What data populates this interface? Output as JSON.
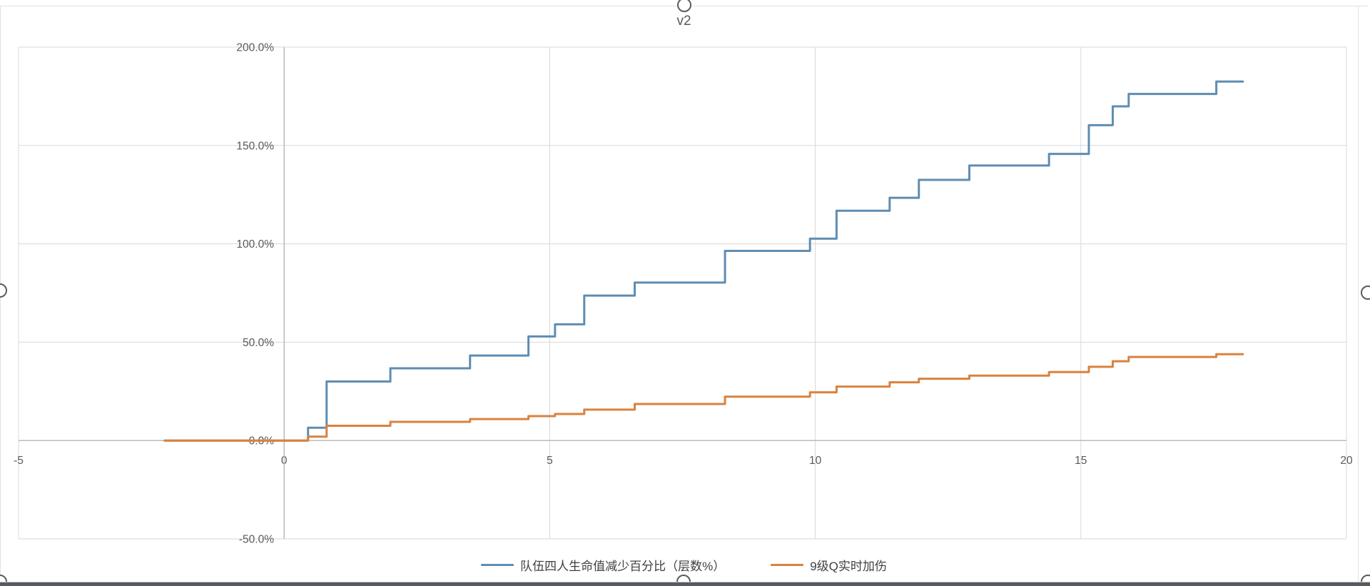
{
  "chart_data": {
    "type": "line",
    "subtype": "step",
    "title": "v2",
    "grid": true,
    "legend_position": "bottom",
    "x_axis": {
      "min": -5,
      "max": 20,
      "ticks": [
        -5,
        0,
        5,
        10,
        15,
        20
      ]
    },
    "y_axis": {
      "min": -50,
      "max": 200,
      "ticks": [
        -50,
        0,
        50,
        100,
        150,
        200
      ],
      "tick_format": "percent_1dp"
    },
    "x_end": 18.05,
    "series": [
      {
        "name": "队伍四人生命值减少百分比（层数%）",
        "color": "#5E8DB3",
        "steps": [
          [
            -2.25,
            0
          ],
          [
            0.45,
            6.5
          ],
          [
            0.8,
            30
          ],
          [
            2.0,
            36.7
          ],
          [
            3.5,
            43.2
          ],
          [
            4.6,
            52.9
          ],
          [
            5.1,
            59.1
          ],
          [
            5.65,
            73.7
          ],
          [
            6.6,
            80.3
          ],
          [
            8.3,
            96.4
          ],
          [
            9.9,
            102.6
          ],
          [
            10.4,
            116.8
          ],
          [
            11.4,
            123.4
          ],
          [
            11.95,
            132.5
          ],
          [
            12.9,
            139.8
          ],
          [
            14.4,
            145.7
          ],
          [
            15.15,
            160.3
          ],
          [
            15.6,
            169.9
          ],
          [
            15.9,
            176.2
          ],
          [
            17.55,
            182.5
          ]
        ]
      },
      {
        "name": "9级Q实时加伤",
        "color": "#D9823E",
        "steps": [
          [
            -2.25,
            0
          ],
          [
            0.45,
            2.0
          ],
          [
            0.8,
            7.5
          ],
          [
            2.0,
            9.5
          ],
          [
            3.5,
            10.9
          ],
          [
            4.6,
            12.4
          ],
          [
            5.1,
            13.5
          ],
          [
            5.65,
            15.7
          ],
          [
            6.6,
            18.6
          ],
          [
            8.3,
            22.3
          ],
          [
            9.9,
            24.5
          ],
          [
            10.4,
            27.4
          ],
          [
            11.4,
            29.6
          ],
          [
            11.95,
            31.4
          ],
          [
            12.9,
            33.0
          ],
          [
            14.4,
            34.8
          ],
          [
            15.15,
            37.5
          ],
          [
            15.6,
            40.3
          ],
          [
            15.9,
            42.5
          ],
          [
            17.55,
            43.9
          ]
        ]
      }
    ],
    "colors": {
      "gridline": "#d8d8d8",
      "axis_line": "#b7b7b7",
      "tick_label": "#595959",
      "legend_text": "#404040"
    }
  }
}
